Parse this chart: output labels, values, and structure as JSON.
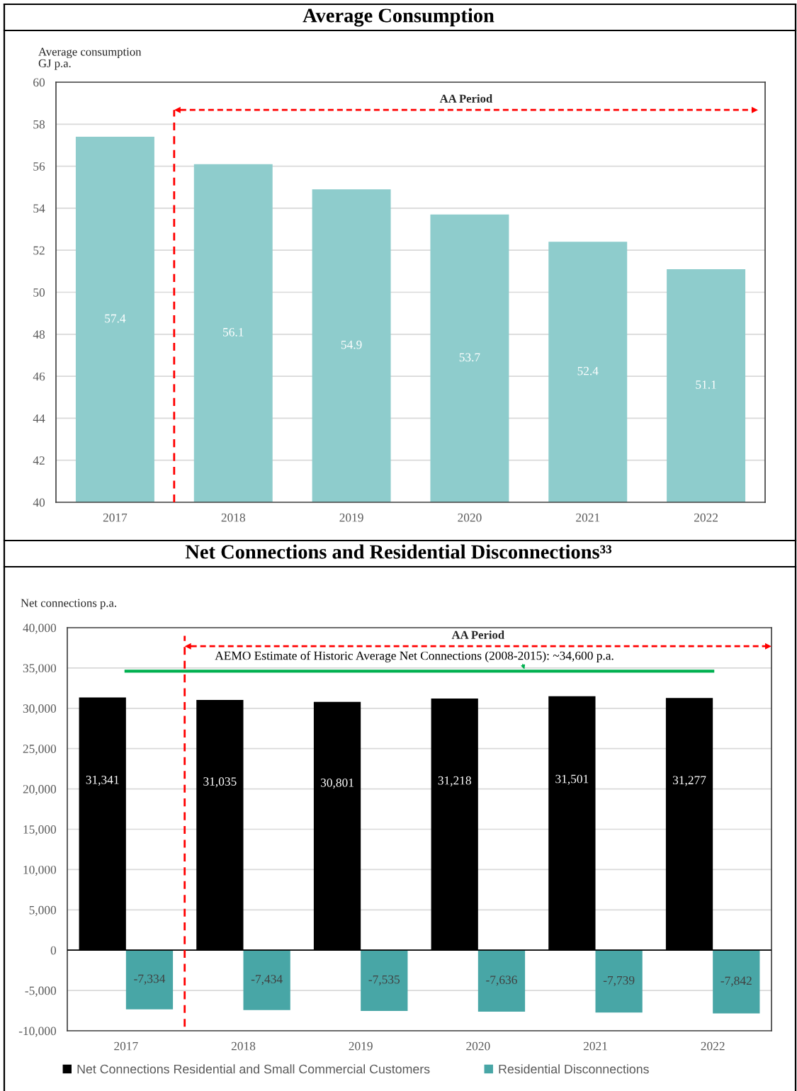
{
  "chart_data": [
    {
      "type": "bar",
      "title": "Average Consumption",
      "ylabel": "Average consumption\nGJ p.a.",
      "x": [
        2017,
        2018,
        2019,
        2020,
        2021,
        2022
      ],
      "values": [
        57.4,
        56.1,
        54.9,
        53.7,
        52.4,
        51.1
      ],
      "color": "#8ecccc",
      "data_labels": true,
      "xlim": [
        2016.5,
        2022.5
      ],
      "xticks": [
        2017,
        2018,
        2019,
        2020,
        2021,
        2022
      ],
      "ylim": [
        40,
        60
      ],
      "yticks": [
        40,
        42,
        44,
        46,
        48,
        50,
        52,
        54,
        56,
        58,
        60
      ],
      "grid": "y",
      "ref_lines": [
        {
          "axis": "x",
          "value": 2017.5,
          "color": "#ff0000",
          "line_style": "dashed"
        }
      ],
      "annotations": [
        "AA Period"
      ]
    },
    {
      "type": "bar",
      "title": "Net Connections and Residential Disconnections³³",
      "ylabel": "Net connections p.a.",
      "x": [
        2017,
        2018,
        2019,
        2020,
        2021,
        2022
      ],
      "series": [
        {
          "name": "Net Connections Residential and Small Commercial Customers",
          "color": "#000000",
          "values": [
            31341,
            31035,
            30801,
            31218,
            31501,
            31277
          ],
          "value_labels": [
            "31,341",
            "31,035",
            "30,801",
            "31,218",
            "31,501",
            "31,277"
          ]
        },
        {
          "name": "Residential Disconnections",
          "color": "#48a6a6",
          "values": [
            -7334,
            -7434,
            -7535,
            -7636,
            -7739,
            -7842
          ],
          "value_labels": [
            "-7,334",
            "-7,434",
            "-7,535",
            "-7,636",
            "-7,739",
            "-7,842"
          ]
        },
        {
          "type": "line",
          "color": "#00b050",
          "x": [
            2017,
            2022
          ],
          "values": [
            34600,
            34600
          ]
        }
      ],
      "xlim": [
        2016.5,
        2022.5
      ],
      "xticks": [
        2017,
        2018,
        2019,
        2020,
        2021,
        2022
      ],
      "ylim": [
        -10000,
        40000
      ],
      "yticks": [
        {
          "value": -10000,
          "label": "-10,000"
        },
        {
          "value": -5000,
          "label": "-5,000"
        },
        0,
        {
          "value": 5000,
          "label": "5,000"
        },
        {
          "value": 10000,
          "label": "10,000"
        },
        {
          "value": 15000,
          "label": "15,000"
        },
        {
          "value": 20000,
          "label": "20,000"
        },
        {
          "value": 25000,
          "label": "25,000"
        },
        {
          "value": 30000,
          "label": "30,000"
        },
        {
          "value": 35000,
          "label": "35,000"
        },
        {
          "value": 40000,
          "label": "40,000"
        }
      ],
      "grid": "y",
      "legend": "bottom",
      "ref_lines": [
        {
          "axis": "x",
          "value": 2017.5,
          "color": "#ff0000",
          "line_style": "dashed"
        },
        {
          "axis": "y",
          "value": 0,
          "color": "#000000",
          "line_style": "solid"
        }
      ],
      "annotations": [
        "AA Period",
        {
          "text": "AEMO Estimate of Historic Average Net Connections (2008-2015): ~34,600 p.a.",
          "x": 2020.4,
          "y": 34600
        }
      ]
    }
  ]
}
